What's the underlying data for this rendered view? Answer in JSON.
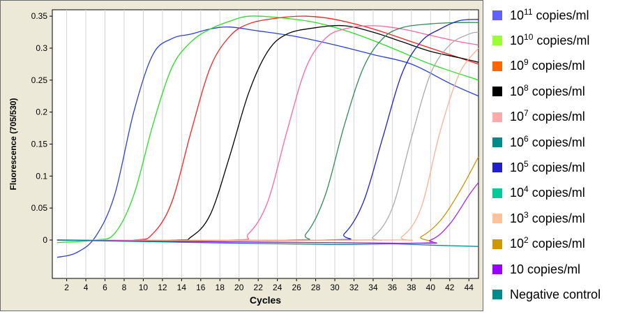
{
  "chart_data": {
    "type": "line",
    "title": "",
    "xlabel": "Cycles",
    "ylabel": "Fluorescence (705/530)",
    "xlim": [
      0.5,
      45
    ],
    "ylim": [
      -0.06,
      0.36
    ],
    "x_ticks": [
      "2",
      "4",
      "6",
      "8",
      "10",
      "12",
      "14",
      "16",
      "18",
      "20",
      "22",
      "24",
      "26",
      "28",
      "30",
      "32",
      "34",
      "36",
      "38",
      "40",
      "42",
      "44"
    ],
    "y_ticks": [
      "0",
      "0.05",
      "0.1",
      "0.15",
      "0.2",
      "0.25",
      "0.3",
      "0.35"
    ],
    "grid": "vertical gridlines only",
    "legend_position": "right",
    "series": [
      {
        "name": "10^11 copies/ml",
        "legend_base": "10",
        "legend_exp": "11",
        "legend_unit": " copies/ml",
        "color": "#6060ff",
        "line_color": "#2a40e0",
        "points": [
          [
            1,
            -0.027
          ],
          [
            3,
            -0.02
          ],
          [
            5,
            0.005
          ],
          [
            7,
            0.07
          ],
          [
            9,
            0.2
          ],
          [
            11,
            0.29
          ],
          [
            13,
            0.315
          ],
          [
            15,
            0.322
          ],
          [
            17,
            0.33
          ],
          [
            19,
            0.333
          ],
          [
            22,
            0.327
          ],
          [
            26,
            0.318
          ],
          [
            30,
            0.305
          ],
          [
            34,
            0.29
          ],
          [
            38,
            0.275
          ],
          [
            42,
            0.245
          ],
          [
            45,
            0.225
          ]
        ]
      },
      {
        "name": "10^10 copies/ml",
        "legend_base": "10",
        "legend_exp": "10",
        "legend_unit": " copies/ml",
        "color": "#99ff33",
        "line_color": "#22e022",
        "points": [
          [
            1,
            -0.004
          ],
          [
            5,
            0.0
          ],
          [
            7,
            0.01
          ],
          [
            9,
            0.07
          ],
          [
            11,
            0.18
          ],
          [
            13,
            0.27
          ],
          [
            15,
            0.31
          ],
          [
            17,
            0.33
          ],
          [
            19,
            0.342
          ],
          [
            21,
            0.35
          ],
          [
            24,
            0.348
          ],
          [
            28,
            0.34
          ],
          [
            32,
            0.323
          ],
          [
            36,
            0.3
          ],
          [
            40,
            0.275
          ],
          [
            45,
            0.25
          ]
        ]
      },
      {
        "name": "10^9 copies/ml",
        "legend_base": "10",
        "legend_exp": "9",
        "legend_unit": " copies/ml",
        "color": "#ff6600",
        "line_color": "#ff2020",
        "points": [
          [
            1,
            0.0
          ],
          [
            9,
            0.0
          ],
          [
            11,
            0.01
          ],
          [
            13,
            0.06
          ],
          [
            15,
            0.17
          ],
          [
            17,
            0.27
          ],
          [
            19,
            0.318
          ],
          [
            21,
            0.338
          ],
          [
            24,
            0.347
          ],
          [
            27,
            0.35
          ],
          [
            30,
            0.345
          ],
          [
            34,
            0.33
          ],
          [
            38,
            0.31
          ],
          [
            42,
            0.29
          ],
          [
            45,
            0.275
          ]
        ]
      },
      {
        "name": "10^8 copies/ml",
        "legend_base": "10",
        "legend_exp": "8",
        "legend_unit": " copies/ml",
        "color": "#000000",
        "line_color": "#000000",
        "points": [
          [
            1,
            0.0
          ],
          [
            13,
            0.0
          ],
          [
            15,
            0.005
          ],
          [
            17,
            0.04
          ],
          [
            19,
            0.13
          ],
          [
            21,
            0.23
          ],
          [
            23,
            0.295
          ],
          [
            25,
            0.322
          ],
          [
            28,
            0.332
          ],
          [
            31,
            0.335
          ],
          [
            34,
            0.325
          ],
          [
            37,
            0.31
          ],
          [
            40,
            0.295
          ],
          [
            43,
            0.285
          ],
          [
            45,
            0.278
          ]
        ]
      },
      {
        "name": "10^7 copies/ml",
        "legend_base": "10",
        "legend_exp": "7",
        "legend_unit": " copies/ml",
        "color": "#ffaaaa",
        "line_color": "#ff6699",
        "points": [
          [
            1,
            0.0
          ],
          [
            19,
            0.0
          ],
          [
            21,
            0.01
          ],
          [
            23,
            0.06
          ],
          [
            25,
            0.17
          ],
          [
            27,
            0.27
          ],
          [
            29,
            0.315
          ],
          [
            31,
            0.33
          ],
          [
            34,
            0.335
          ],
          [
            37,
            0.33
          ],
          [
            40,
            0.32
          ],
          [
            43,
            0.31
          ],
          [
            45,
            0.305
          ]
        ]
      },
      {
        "name": "10^6 copies/ml",
        "legend_base": "10",
        "legend_exp": "6",
        "legend_unit": " copies/ml",
        "color": "#008b8b",
        "line_color": "#2e8b57",
        "points": [
          [
            1,
            0.0
          ],
          [
            25,
            0.0
          ],
          [
            27,
            0.01
          ],
          [
            29,
            0.07
          ],
          [
            31,
            0.18
          ],
          [
            33,
            0.27
          ],
          [
            35,
            0.315
          ],
          [
            37,
            0.332
          ],
          [
            40,
            0.338
          ],
          [
            43,
            0.34
          ],
          [
            45,
            0.34
          ]
        ]
      },
      {
        "name": "10^5 copies/ml",
        "legend_base": "10",
        "legend_exp": "5",
        "legend_unit": " copies/ml",
        "color": "#2020cc",
        "line_color": "#1e1ed2",
        "points": [
          [
            1,
            0.0
          ],
          [
            29,
            0.0
          ],
          [
            31,
            0.01
          ],
          [
            33,
            0.06
          ],
          [
            35,
            0.16
          ],
          [
            37,
            0.26
          ],
          [
            39,
            0.31
          ],
          [
            41,
            0.33
          ],
          [
            43,
            0.343
          ],
          [
            45,
            0.345
          ]
        ]
      },
      {
        "name": "10^4 copies/ml",
        "legend_base": "10",
        "legend_exp": "4",
        "legend_unit": " copies/ml",
        "color": "#00cc99",
        "line_color": "#aaaaaa",
        "points": [
          [
            1,
            0.0
          ],
          [
            32,
            0.0
          ],
          [
            34,
            0.005
          ],
          [
            36,
            0.05
          ],
          [
            38,
            0.16
          ],
          [
            40,
            0.26
          ],
          [
            42,
            0.305
          ],
          [
            44,
            0.322
          ],
          [
            45,
            0.325
          ]
        ]
      },
      {
        "name": "10^3 copies/ml",
        "legend_base": "10",
        "legend_exp": "3",
        "legend_unit": " copies/ml",
        "color": "#ffc299",
        "line_color": "#ffb090",
        "points": [
          [
            1,
            0.0
          ],
          [
            35,
            0.0
          ],
          [
            37,
            0.005
          ],
          [
            39,
            0.05
          ],
          [
            41,
            0.17
          ],
          [
            43,
            0.26
          ],
          [
            45,
            0.3
          ]
        ]
      },
      {
        "name": "10^2 copies/ml",
        "legend_base": "10",
        "legend_exp": "2",
        "legend_unit": " copies/ml",
        "color": "#cc9900",
        "line_color": "#c89600",
        "points": [
          [
            1,
            0.0
          ],
          [
            37,
            -0.005
          ],
          [
            39,
            0.005
          ],
          [
            41,
            0.03
          ],
          [
            43,
            0.075
          ],
          [
            45,
            0.13
          ]
        ]
      },
      {
        "name": "10 copies/ml",
        "legend_base": "10",
        "legend_exp": "",
        "legend_unit": " copies/ml",
        "color": "#9900ff",
        "line_color": "#aa22ee",
        "points": [
          [
            1,
            0.0
          ],
          [
            37,
            -0.005
          ],
          [
            40,
            0.0
          ],
          [
            42,
            0.025
          ],
          [
            44,
            0.07
          ],
          [
            45,
            0.09
          ]
        ]
      },
      {
        "name": "Negative control",
        "legend_base": "Negative control",
        "legend_exp": "",
        "legend_unit": "",
        "color": "#008b8b",
        "line_color": "#008b8b",
        "points": [
          [
            1,
            0.0
          ],
          [
            20,
            -0.005
          ],
          [
            30,
            -0.007
          ],
          [
            36,
            -0.006
          ],
          [
            40,
            -0.008
          ],
          [
            45,
            -0.01
          ]
        ]
      }
    ]
  }
}
